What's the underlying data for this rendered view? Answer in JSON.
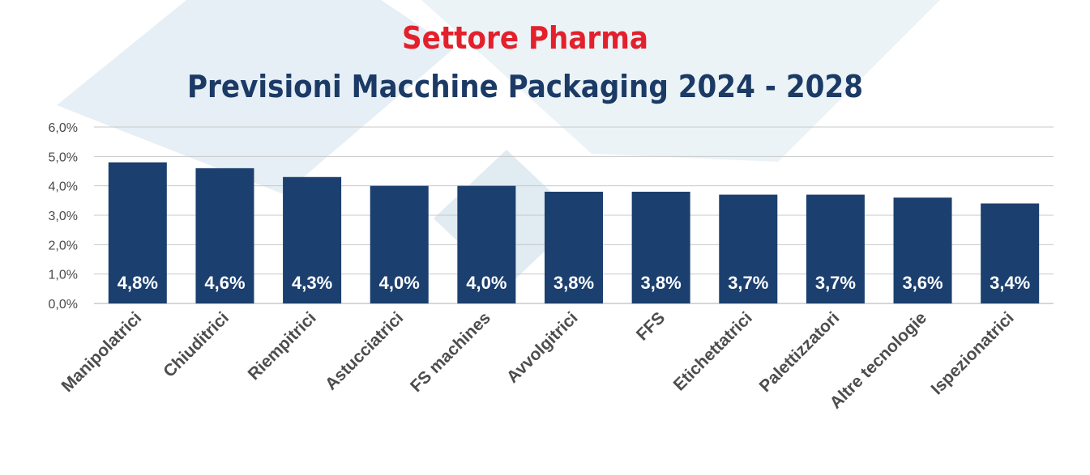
{
  "colors": {
    "bar": "#1b3f6e",
    "title": "#e3202b",
    "subtitle": "#1b3a66",
    "grid": "#c8c8c8",
    "decor": "#dde9f1"
  },
  "chart_data": {
    "type": "bar",
    "title": "Settore Pharma",
    "subtitle": "Previsioni Macchine Packaging 2024 - 2028",
    "xlabel": "",
    "ylabel": "",
    "ylim": [
      0,
      6
    ],
    "grid": true,
    "yticks": [
      0,
      1,
      2,
      3,
      4,
      5,
      6
    ],
    "ytick_labels": [
      "0,0%",
      "1,0%",
      "2,0%",
      "3,0%",
      "4,0%",
      "5,0%",
      "6,0%"
    ],
    "categories": [
      "Manipolatrici",
      "Chiuditrici",
      "Riempitrici",
      "Astucciatrici",
      "FS machines",
      "Avvolgitrici",
      "FFS",
      "Etichettatrici",
      "Palettizzatori",
      "Altre tecnologie",
      "Ispezionatrici"
    ],
    "values": [
      4.8,
      4.6,
      4.3,
      4.0,
      4.0,
      3.8,
      3.8,
      3.7,
      3.7,
      3.6,
      3.4
    ],
    "data_labels": [
      "4,8%",
      "4,6%",
      "4,3%",
      "4,0%",
      "4,0%",
      "3,8%",
      "3,8%",
      "3,7%",
      "3,7%",
      "3,6%",
      "3,4%"
    ]
  }
}
